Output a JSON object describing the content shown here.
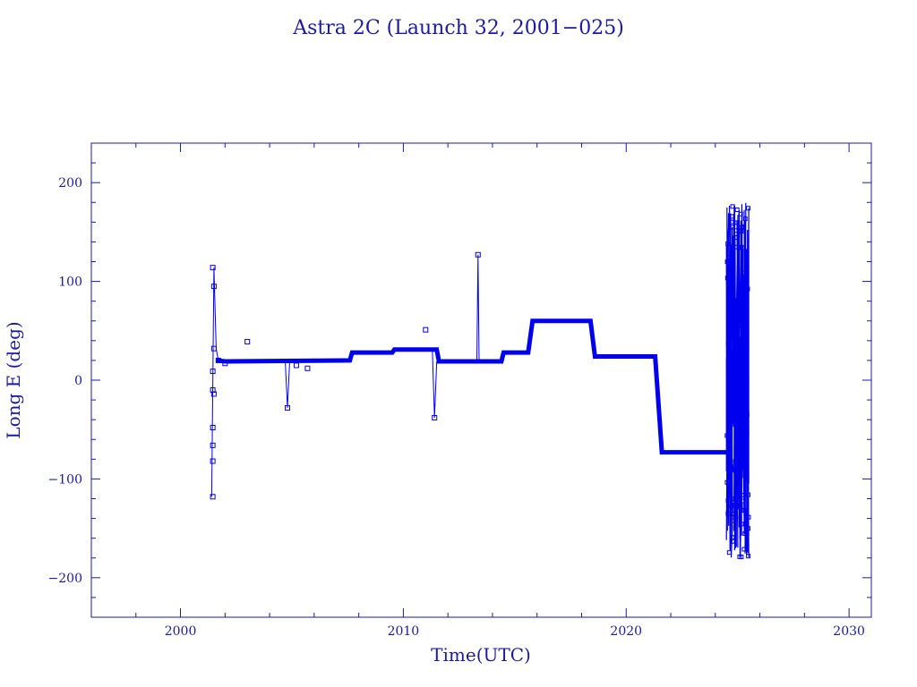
{
  "chart_data": {
    "type": "line",
    "title": "Astra 2C (Launch 32, 2001−025)",
    "xlabel": "Time(UTC)",
    "ylabel": "Long E (deg)",
    "xlim": [
      1996,
      2031
    ],
    "ylim": [
      -240,
      240
    ],
    "x_ticks": [
      2000,
      2010,
      2020,
      2030
    ],
    "y_ticks": [
      -200,
      -100,
      0,
      100,
      200
    ],
    "x_tick_labels": [
      "2000",
      "2010",
      "2020",
      "2030"
    ],
    "y_tick_labels": [
      "−200",
      "−100",
      "0",
      "100",
      "200"
    ],
    "grid": false,
    "series_color": "#0000ee",
    "segments": [
      {
        "x": [
          2001.4,
          2001.5,
          2001.6,
          2001.7,
          2002.0,
          2007.6
        ],
        "y": [
          -118,
          114,
          32,
          20,
          19,
          20
        ],
        "weight": "thin"
      },
      {
        "x": [
          2001.6,
          2002.0,
          2007.6,
          2007.7,
          2009.5,
          2009.6,
          2011.5,
          2011.6,
          2014.4,
          2014.5,
          2015.6,
          2015.8,
          2018.4,
          2018.6,
          2021.3,
          2021.6,
          2024.5
        ],
        "y": [
          20,
          19,
          20,
          28,
          28,
          31,
          31,
          19,
          19,
          28,
          28,
          60,
          60,
          24,
          24,
          -73,
          -73
        ],
        "weight": "thick"
      },
      {
        "x": [
          2013.3,
          2013.35,
          2013.4
        ],
        "y": [
          20,
          127,
          20
        ],
        "weight": "thin"
      },
      {
        "x": [
          2011.3,
          2011.4,
          2011.5
        ],
        "y": [
          31,
          -38,
          19
        ],
        "weight": "thin"
      },
      {
        "x": [
          2004.7,
          2004.8,
          2004.9
        ],
        "y": [
          20,
          -28,
          20
        ],
        "weight": "thin"
      }
    ],
    "markers": [
      {
        "x": 2001.45,
        "y": 114
      },
      {
        "x": 2001.5,
        "y": 95
      },
      {
        "x": 2001.5,
        "y": 32
      },
      {
        "x": 2001.45,
        "y": 9
      },
      {
        "x": 2001.45,
        "y": -10
      },
      {
        "x": 2001.5,
        "y": -14
      },
      {
        "x": 2001.45,
        "y": -48
      },
      {
        "x": 2001.45,
        "y": -66
      },
      {
        "x": 2001.45,
        "y": -82
      },
      {
        "x": 2001.45,
        "y": -118
      },
      {
        "x": 2001.7,
        "y": 20
      },
      {
        "x": 2002.0,
        "y": 17
      },
      {
        "x": 2003.0,
        "y": 39
      },
      {
        "x": 2004.8,
        "y": -28
      },
      {
        "x": 2005.2,
        "y": 15
      },
      {
        "x": 2005.7,
        "y": 12
      },
      {
        "x": 2011.0,
        "y": 51
      },
      {
        "x": 2011.4,
        "y": -38
      },
      {
        "x": 2013.35,
        "y": 127
      }
    ],
    "drift_region": {
      "x_start": 2024.5,
      "x_end": 2025.5,
      "y_min": -180,
      "y_max": 180
    }
  }
}
